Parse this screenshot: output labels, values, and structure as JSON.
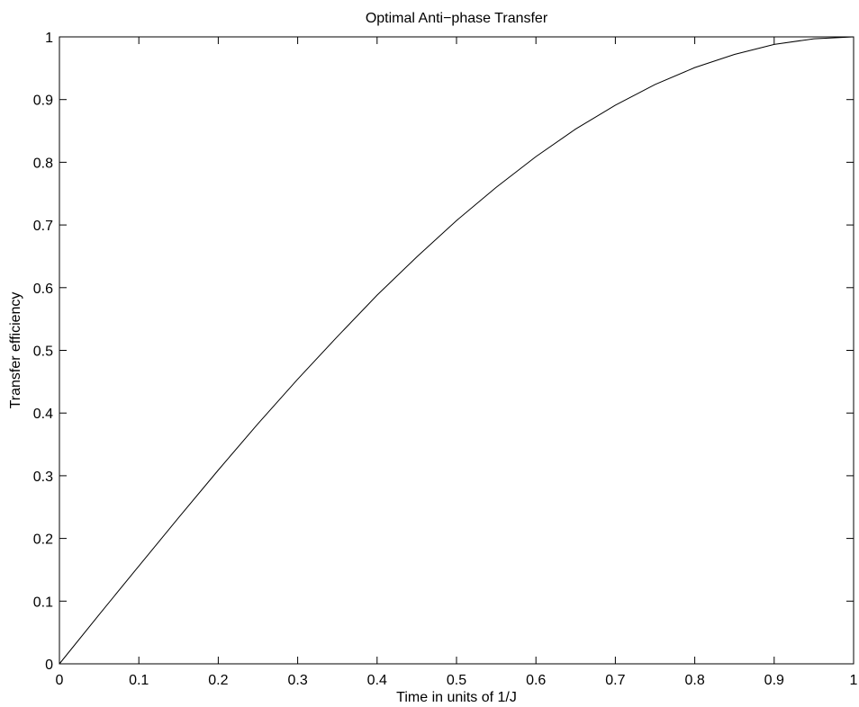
{
  "chart_data": {
    "type": "line",
    "title": "Optimal Anti−phase Transfer",
    "xlabel": "Time in units of 1/J",
    "ylabel": "Transfer efficiency",
    "xlim": [
      0,
      1
    ],
    "ylim": [
      0,
      1
    ],
    "x_ticks": [
      0,
      0.1,
      0.2,
      0.3,
      0.4,
      0.5,
      0.6,
      0.7,
      0.8,
      0.9,
      1
    ],
    "y_ticks": [
      0,
      0.1,
      0.2,
      0.3,
      0.4,
      0.5,
      0.6,
      0.7,
      0.8,
      0.9,
      1
    ],
    "x_tick_labels": [
      "0",
      "0.1",
      "0.2",
      "0.3",
      "0.4",
      "0.5",
      "0.6",
      "0.7",
      "0.8",
      "0.9",
      "1"
    ],
    "y_tick_labels": [
      "0",
      "0.1",
      "0.2",
      "0.3",
      "0.4",
      "0.5",
      "0.6",
      "0.7",
      "0.8",
      "0.9",
      "1"
    ],
    "grid": false,
    "legend": "none",
    "line_color": "#000000",
    "series": [
      {
        "x": [
          0,
          0.05,
          0.1,
          0.15,
          0.2,
          0.25,
          0.3,
          0.35,
          0.4,
          0.45,
          0.5,
          0.55,
          0.6,
          0.65,
          0.7,
          0.75,
          0.8,
          0.85,
          0.9,
          0.95,
          1
        ],
        "values": [
          0,
          0.0785,
          0.156,
          0.233,
          0.309,
          0.383,
          0.454,
          0.522,
          0.588,
          0.649,
          0.707,
          0.76,
          0.809,
          0.853,
          0.891,
          0.924,
          0.951,
          0.972,
          0.988,
          0.997,
          1
        ]
      }
    ]
  }
}
